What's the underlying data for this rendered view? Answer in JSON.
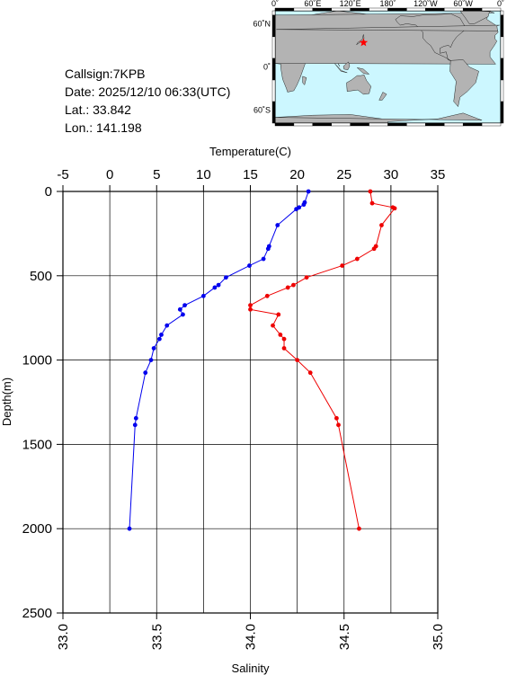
{
  "info": {
    "callsign": "Callsign:7KPB",
    "date": "Date:  2025/12/10 06:33(UTC)",
    "lat": "Lat.:  33.842",
    "lon": "Lon.:  141.198"
  },
  "map": {
    "lon_labels": [
      "0˚",
      "60˚E",
      "120˚E",
      "180˚",
      "120˚W",
      "60˚W",
      "0˚"
    ],
    "lat_labels": [
      "60˚N",
      "0˚",
      "60˚S"
    ],
    "ocean_color": "#ccf7ff",
    "land_color": "#b3b3b3",
    "marker_color": "#ff0000",
    "marker_lon": 141.198,
    "marker_lat": 33.842
  },
  "chart_data": {
    "type": "line",
    "top_axis_label": "Temperature(C)",
    "bottom_axis_label": "Salinity",
    "ylabel": "Depth(m)",
    "temperature_range": [
      -5,
      35
    ],
    "salinity_range": [
      33.0,
      35.0
    ],
    "depth_range": [
      0,
      2500
    ],
    "temperature_ticks": [
      "-5",
      "0",
      "5",
      "10",
      "15",
      "20",
      "25",
      "30",
      "35"
    ],
    "salinity_ticks": [
      "33.0",
      "33.5",
      "34.0",
      "34.5",
      "35.0"
    ],
    "depth_ticks": [
      "0",
      "500",
      "1000",
      "1500",
      "2000",
      "2500"
    ],
    "grid": true,
    "series": [
      {
        "key": "temperature",
        "axis": "top",
        "color": "#0000ee",
        "points": [
          {
            "depth": 0,
            "value": 21.2
          },
          {
            "depth": 65,
            "value": 20.8
          },
          {
            "depth": 78,
            "value": 20.7
          },
          {
            "depth": 95,
            "value": 20.2
          },
          {
            "depth": 105,
            "value": 19.9
          },
          {
            "depth": 200,
            "value": 17.9
          },
          {
            "depth": 325,
            "value": 17.0
          },
          {
            "depth": 340,
            "value": 16.9
          },
          {
            "depth": 400,
            "value": 16.4
          },
          {
            "depth": 440,
            "value": 14.9
          },
          {
            "depth": 510,
            "value": 12.4
          },
          {
            "depth": 555,
            "value": 11.6
          },
          {
            "depth": 570,
            "value": 11.2
          },
          {
            "depth": 620,
            "value": 10.0
          },
          {
            "depth": 675,
            "value": 8.0
          },
          {
            "depth": 700,
            "value": 7.5
          },
          {
            "depth": 730,
            "value": 7.8
          },
          {
            "depth": 795,
            "value": 6.1
          },
          {
            "depth": 850,
            "value": 5.5
          },
          {
            "depth": 875,
            "value": 5.3
          },
          {
            "depth": 930,
            "value": 4.7
          },
          {
            "depth": 1000,
            "value": 4.4
          },
          {
            "depth": 1075,
            "value": 3.8
          },
          {
            "depth": 1345,
            "value": 2.8
          },
          {
            "depth": 1385,
            "value": 2.7
          },
          {
            "depth": 2000,
            "value": 2.1
          }
        ]
      },
      {
        "key": "salinity",
        "axis": "bottom",
        "color": "#ee0000",
        "points": [
          {
            "depth": 0,
            "value": 34.64
          },
          {
            "depth": 70,
            "value": 34.65
          },
          {
            "depth": 95,
            "value": 34.76
          },
          {
            "depth": 100,
            "value": 34.77
          },
          {
            "depth": 200,
            "value": 34.7
          },
          {
            "depth": 325,
            "value": 34.67
          },
          {
            "depth": 340,
            "value": 34.66
          },
          {
            "depth": 400,
            "value": 34.57
          },
          {
            "depth": 440,
            "value": 34.49
          },
          {
            "depth": 510,
            "value": 34.3
          },
          {
            "depth": 555,
            "value": 34.23
          },
          {
            "depth": 570,
            "value": 34.2
          },
          {
            "depth": 620,
            "value": 34.09
          },
          {
            "depth": 675,
            "value": 34.0
          },
          {
            "depth": 700,
            "value": 34.0
          },
          {
            "depth": 730,
            "value": 34.15
          },
          {
            "depth": 795,
            "value": 34.12
          },
          {
            "depth": 850,
            "value": 34.16
          },
          {
            "depth": 875,
            "value": 34.18
          },
          {
            "depth": 930,
            "value": 34.18
          },
          {
            "depth": 1000,
            "value": 34.25
          },
          {
            "depth": 1075,
            "value": 34.32
          },
          {
            "depth": 1345,
            "value": 34.46
          },
          {
            "depth": 1385,
            "value": 34.47
          },
          {
            "depth": 2000,
            "value": 34.58
          }
        ]
      }
    ]
  }
}
